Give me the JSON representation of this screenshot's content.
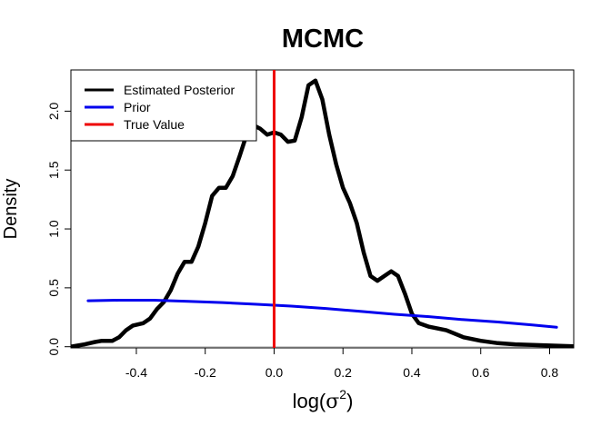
{
  "chart_data": {
    "type": "line",
    "title": "MCMC",
    "ylabel": "Density",
    "xlabel_main": "log(",
    "xlabel_symbol": "σ",
    "xlabel_sup": "2",
    "xlabel_close": ")",
    "xlim": [
      -0.59,
      0.87
    ],
    "ylim": [
      -0.01,
      2.35
    ],
    "x_ticks": [
      {
        "value": -0.4,
        "label": "-0.4"
      },
      {
        "value": -0.2,
        "label": "-0.2"
      },
      {
        "value": 0.0,
        "label": "0.0"
      },
      {
        "value": 0.2,
        "label": "0.2"
      },
      {
        "value": 0.4,
        "label": "0.4"
      },
      {
        "value": 0.6,
        "label": "0.6"
      },
      {
        "value": 0.8,
        "label": "0.8"
      }
    ],
    "y_ticks": [
      {
        "value": 0.0,
        "label": "0.0"
      },
      {
        "value": 0.5,
        "label": "0.5"
      },
      {
        "value": 1.0,
        "label": "1.0"
      },
      {
        "value": 1.5,
        "label": "1.5"
      },
      {
        "value": 2.0,
        "label": "2.0"
      }
    ],
    "legend": {
      "position": "top-left",
      "entries": [
        {
          "label": "Estimated Posterior",
          "color": "#000000"
        },
        {
          "label": "Prior",
          "color": "#0000ee"
        },
        {
          "label": "True Value",
          "color": "#ee0000"
        }
      ]
    },
    "baseline": {
      "y": 0.0,
      "color": "#bebebe"
    },
    "true_value": {
      "x": 0.0,
      "color": "#ee0000"
    },
    "series": [
      {
        "name": "Estimated Posterior",
        "color": "#000000",
        "points": [
          [
            -0.65,
            0.0
          ],
          [
            -0.59,
            0.0
          ],
          [
            -0.55,
            0.02
          ],
          [
            -0.52,
            0.04
          ],
          [
            -0.5,
            0.05
          ],
          [
            -0.47,
            0.05
          ],
          [
            -0.45,
            0.08
          ],
          [
            -0.43,
            0.14
          ],
          [
            -0.41,
            0.18
          ],
          [
            -0.38,
            0.2
          ],
          [
            -0.36,
            0.24
          ],
          [
            -0.34,
            0.32
          ],
          [
            -0.32,
            0.38
          ],
          [
            -0.3,
            0.48
          ],
          [
            -0.28,
            0.62
          ],
          [
            -0.26,
            0.72
          ],
          [
            -0.24,
            0.72
          ],
          [
            -0.22,
            0.85
          ],
          [
            -0.2,
            1.05
          ],
          [
            -0.18,
            1.28
          ],
          [
            -0.16,
            1.35
          ],
          [
            -0.14,
            1.35
          ],
          [
            -0.12,
            1.45
          ],
          [
            -0.1,
            1.62
          ],
          [
            -0.08,
            1.8
          ],
          [
            -0.06,
            1.88
          ],
          [
            -0.04,
            1.85
          ],
          [
            -0.02,
            1.8
          ],
          [
            0.0,
            1.82
          ],
          [
            0.02,
            1.8
          ],
          [
            0.04,
            1.74
          ],
          [
            0.06,
            1.75
          ],
          [
            0.08,
            1.95
          ],
          [
            0.1,
            2.22
          ],
          [
            0.12,
            2.26
          ],
          [
            0.14,
            2.1
          ],
          [
            0.16,
            1.8
          ],
          [
            0.18,
            1.55
          ],
          [
            0.2,
            1.35
          ],
          [
            0.22,
            1.22
          ],
          [
            0.24,
            1.05
          ],
          [
            0.26,
            0.8
          ],
          [
            0.28,
            0.6
          ],
          [
            0.3,
            0.56
          ],
          [
            0.32,
            0.6
          ],
          [
            0.34,
            0.64
          ],
          [
            0.36,
            0.6
          ],
          [
            0.38,
            0.45
          ],
          [
            0.4,
            0.28
          ],
          [
            0.42,
            0.2
          ],
          [
            0.45,
            0.17
          ],
          [
            0.5,
            0.14
          ],
          [
            0.55,
            0.08
          ],
          [
            0.6,
            0.05
          ],
          [
            0.65,
            0.03
          ],
          [
            0.7,
            0.02
          ],
          [
            0.8,
            0.01
          ],
          [
            0.9,
            0.0
          ]
        ]
      },
      {
        "name": "Prior",
        "color": "#0000ee",
        "points": [
          [
            -0.54,
            0.39
          ],
          [
            -0.45,
            0.395
          ],
          [
            -0.35,
            0.395
          ],
          [
            -0.25,
            0.385
          ],
          [
            -0.15,
            0.375
          ],
          [
            -0.05,
            0.36
          ],
          [
            0.05,
            0.345
          ],
          [
            0.15,
            0.325
          ],
          [
            0.25,
            0.3
          ],
          [
            0.35,
            0.275
          ],
          [
            0.45,
            0.255
          ],
          [
            0.55,
            0.23
          ],
          [
            0.65,
            0.21
          ],
          [
            0.75,
            0.185
          ],
          [
            0.82,
            0.165
          ]
        ]
      }
    ]
  }
}
